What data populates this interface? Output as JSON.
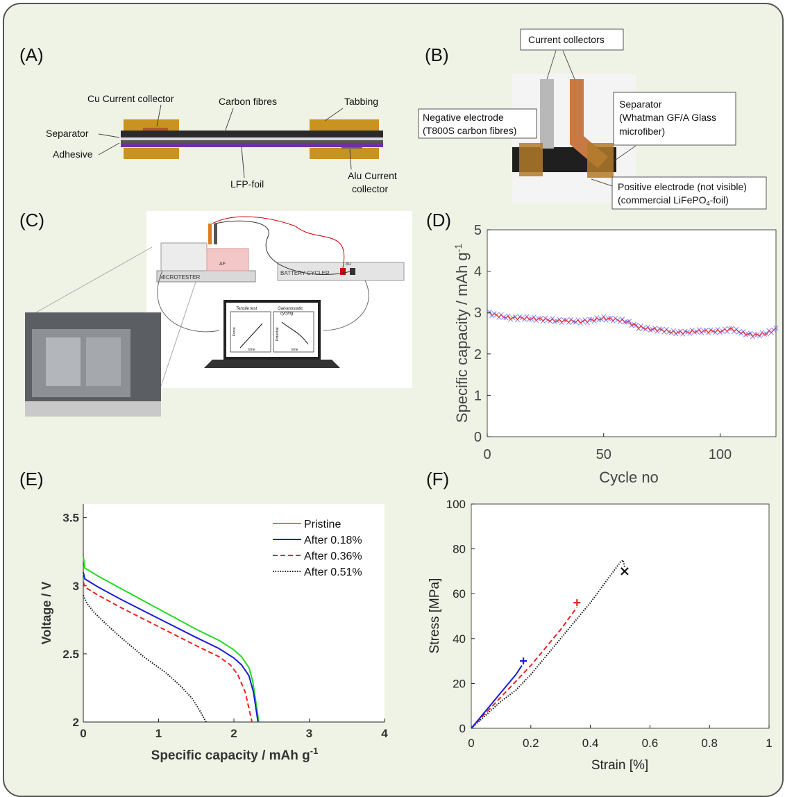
{
  "panels": {
    "A": {
      "label": "(A)",
      "annotations": {
        "cu": "Cu Current collector",
        "carbon": "Carbon fibres",
        "tabbing": "Tabbing",
        "separator": "Separator",
        "adhesive": "Adhesive",
        "lfp": "LFP-foil",
        "alu1": "Alu Current",
        "alu2": "collector"
      }
    },
    "B": {
      "label": "(B)",
      "annotations": {
        "cc": "Current collectors",
        "neg1": "Negative electrode",
        "neg2": "(T800S carbon fibres)",
        "sep1": "Separator",
        "sep2": "(Whatman GF/A Glass",
        "sep3": "microfiber)",
        "pos1": "Positive electrode (not visible)",
        "pos2a": "(commercial LiFePO",
        "pos2sub": "4",
        "pos2b": "-foil)"
      }
    },
    "C": {
      "label": "(C)",
      "labels": {
        "microtester": "MICROTESTER",
        "cycler": "BATTERY CYCLER",
        "force": "ΔF",
        "du": "ΔU",
        "tensile": "Tensile test",
        "galv1": "Galvanostatic",
        "galv2": "cycling",
        "force_axis": "Force",
        "potential_axis": "Potential",
        "time1": "time",
        "time2": "time"
      }
    },
    "D": {
      "label": "(D)"
    },
    "E": {
      "label": "(E)"
    },
    "F": {
      "label": "(F)"
    }
  },
  "chart_data": [
    {
      "id": "D",
      "type": "scatter",
      "xlabel": "Cycle no",
      "ylabel": "Specific capacity / mAh g",
      "ylabel_sup": "-1",
      "xlim": [
        0,
        124
      ],
      "ylim": [
        0,
        5
      ],
      "xticks": [
        0,
        50,
        100
      ],
      "yticks": [
        0,
        1,
        2,
        3,
        4,
        5
      ],
      "colors": {
        "charge": "#8888ff",
        "discharge": "#ee3333"
      },
      "trend": [
        [
          0,
          3.0
        ],
        [
          5,
          2.92
        ],
        [
          10,
          2.87
        ],
        [
          15,
          2.87
        ],
        [
          20,
          2.85
        ],
        [
          25,
          2.83
        ],
        [
          30,
          2.8
        ],
        [
          35,
          2.8
        ],
        [
          40,
          2.78
        ],
        [
          45,
          2.82
        ],
        [
          50,
          2.86
        ],
        [
          55,
          2.83
        ],
        [
          60,
          2.78
        ],
        [
          65,
          2.65
        ],
        [
          70,
          2.6
        ],
        [
          75,
          2.58
        ],
        [
          80,
          2.52
        ],
        [
          85,
          2.52
        ],
        [
          90,
          2.55
        ],
        [
          95,
          2.55
        ],
        [
          100,
          2.55
        ],
        [
          105,
          2.6
        ],
        [
          110,
          2.5
        ],
        [
          115,
          2.45
        ],
        [
          120,
          2.5
        ],
        [
          124,
          2.6
        ]
      ]
    },
    {
      "id": "E",
      "type": "line",
      "xlabel": "Specific capacity / mAh g",
      "xlabel_sup": "-1",
      "ylabel": "Voltage / V",
      "xlim": [
        0,
        4
      ],
      "ylim": [
        2,
        3.6
      ],
      "xticks": [
        0,
        1,
        2,
        3,
        4
      ],
      "yticks": [
        2,
        2.5,
        3,
        3.5
      ],
      "legend_position": "top-right",
      "series": [
        {
          "name": "Pristine",
          "color": "#22dd22",
          "dash": "",
          "points": [
            [
              0,
              3.22
            ],
            [
              0.02,
              3.13
            ],
            [
              0.2,
              3.07
            ],
            [
              0.5,
              2.98
            ],
            [
              1.0,
              2.83
            ],
            [
              1.5,
              2.68
            ],
            [
              1.8,
              2.6
            ],
            [
              2.0,
              2.53
            ],
            [
              2.1,
              2.48
            ],
            [
              2.2,
              2.4
            ],
            [
              2.25,
              2.3
            ],
            [
              2.3,
              2.12
            ],
            [
              2.33,
              2.0
            ]
          ]
        },
        {
          "name": "After 0.18%",
          "color": "#1a1ad8",
          "dash": "",
          "points": [
            [
              0,
              3.1
            ],
            [
              0.02,
              3.05
            ],
            [
              0.2,
              2.99
            ],
            [
              0.5,
              2.9
            ],
            [
              1.0,
              2.76
            ],
            [
              1.5,
              2.62
            ],
            [
              1.8,
              2.54
            ],
            [
              2.0,
              2.47
            ],
            [
              2.1,
              2.42
            ],
            [
              2.2,
              2.34
            ],
            [
              2.26,
              2.22
            ],
            [
              2.32,
              2.0
            ]
          ]
        },
        {
          "name": "After 0.36%",
          "color": "#ee2222",
          "dash": "7,4",
          "points": [
            [
              0,
              3.03
            ],
            [
              0.02,
              2.99
            ],
            [
              0.2,
              2.93
            ],
            [
              0.5,
              2.84
            ],
            [
              1.0,
              2.7
            ],
            [
              1.5,
              2.56
            ],
            [
              1.8,
              2.48
            ],
            [
              1.95,
              2.42
            ],
            [
              2.05,
              2.35
            ],
            [
              2.15,
              2.22
            ],
            [
              2.2,
              2.1
            ],
            [
              2.24,
              2.0
            ]
          ]
        },
        {
          "name": "After 0.51%",
          "color": "#111111",
          "dash": "1.5,2",
          "points": [
            [
              0,
              2.93
            ],
            [
              0.05,
              2.87
            ],
            [
              0.15,
              2.8
            ],
            [
              0.3,
              2.72
            ],
            [
              0.5,
              2.62
            ],
            [
              0.8,
              2.48
            ],
            [
              1.1,
              2.36
            ],
            [
              1.3,
              2.26
            ],
            [
              1.45,
              2.17
            ],
            [
              1.55,
              2.08
            ],
            [
              1.63,
              2.0
            ]
          ]
        }
      ]
    },
    {
      "id": "F",
      "type": "line",
      "xlabel": "Strain [%]",
      "ylabel": "Stress [MPa]",
      "xlim": [
        0,
        1
      ],
      "ylim": [
        0,
        100
      ],
      "xticks": [
        0,
        0.2,
        0.4,
        0.6,
        0.8,
        1
      ],
      "xtick_labels": [
        "0",
        "0.2",
        "0.4",
        "0.6",
        "0.8",
        "1"
      ],
      "yticks": [
        0,
        20,
        40,
        60,
        80,
        100
      ],
      "series": [
        {
          "color": "#111111",
          "dash": "1.5,2",
          "points": [
            [
              0,
              0
            ],
            [
              0.05,
              6
            ],
            [
              0.1,
              12
            ],
            [
              0.15,
              17
            ],
            [
              0.2,
              24
            ],
            [
              0.25,
              32
            ],
            [
              0.3,
              40
            ],
            [
              0.35,
              48
            ],
            [
              0.4,
              56
            ],
            [
              0.45,
              65
            ],
            [
              0.5,
              74
            ],
            [
              0.51,
              75
            ],
            [
              0.515,
              72
            ]
          ],
          "end_marker": "x",
          "end": [
            0.515,
            70
          ]
        },
        {
          "color": "#ee2222",
          "dash": "7,4",
          "points": [
            [
              0,
              0
            ],
            [
              0.05,
              7
            ],
            [
              0.1,
              14
            ],
            [
              0.15,
              21
            ],
            [
              0.2,
              28
            ],
            [
              0.25,
              36
            ],
            [
              0.3,
              44
            ],
            [
              0.355,
              54
            ]
          ],
          "end_marker": "+",
          "end": [
            0.355,
            56
          ]
        },
        {
          "color": "#1a1ad8",
          "dash": "",
          "points": [
            [
              0,
              0
            ],
            [
              0.05,
              8
            ],
            [
              0.1,
              16
            ],
            [
              0.15,
              24
            ],
            [
              0.17,
              28
            ]
          ],
          "end_marker": "+",
          "end": [
            0.175,
            30
          ]
        }
      ]
    }
  ]
}
